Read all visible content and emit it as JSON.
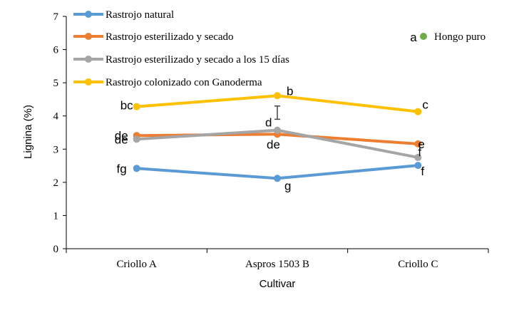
{
  "chart_data": {
    "type": "line",
    "title": "",
    "xlabel": "Cultivar",
    "ylabel": "Lignina (%)",
    "categories": [
      "Criollo A",
      "Aspros 1503 B",
      "Criollo C"
    ],
    "ylim": [
      0,
      7
    ],
    "yticks": [
      "0",
      "1",
      "2",
      "3",
      "4",
      "5",
      "6",
      "7"
    ],
    "grid": false,
    "legend_position": "top-left",
    "series": [
      {
        "name": "Rastrojo natural",
        "color": "#5B9BD5",
        "values": [
          2.42,
          2.12,
          2.51
        ],
        "labels": [
          "fg",
          "g",
          "f"
        ]
      },
      {
        "name": "Rastrojo esterilizado y secado",
        "color": "#ED7D31",
        "values": [
          3.41,
          3.45,
          3.16
        ],
        "labels": [
          "de",
          "de",
          "e"
        ]
      },
      {
        "name": "Rastrojo esterilizado y secado a los 15 días",
        "color": "#A5A5A5",
        "values": [
          3.3,
          3.57,
          2.75
        ],
        "labels": [
          "de",
          "d",
          "f"
        ]
      },
      {
        "name": "Rastrojo colonizado con Ganoderma",
        "color": "#FFC000",
        "values": [
          4.28,
          4.61,
          4.13
        ],
        "labels": [
          "bc",
          "b",
          "c"
        ]
      }
    ],
    "extra_points": [
      {
        "name": "Hongo puro",
        "letter": "a",
        "color": "#70AD47"
      }
    ],
    "error_bars": [
      {
        "category": "Aspros 1503 B",
        "low": 3.9,
        "high": 4.3
      }
    ]
  }
}
